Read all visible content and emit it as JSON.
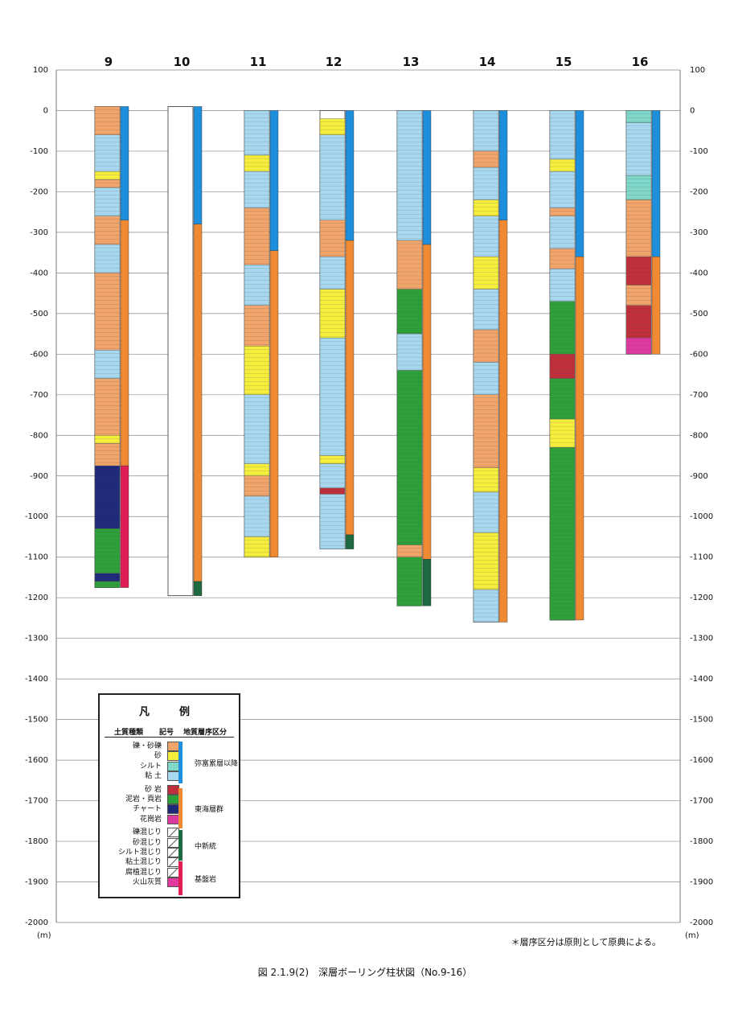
{
  "chart_data": {
    "type": "strip-log",
    "y_axis": {
      "range": [
        100,
        -2000
      ],
      "ticks": [
        100,
        0,
        -100,
        -200,
        -300,
        -400,
        -500,
        -600,
        -700,
        -800,
        -900,
        -1000,
        -1100,
        -1200,
        -1300,
        -1400,
        -1500,
        -1600,
        -1700,
        -1800,
        -1900,
        -2000
      ],
      "unit": "(m)"
    },
    "grid": true,
    "columns": [
      {
        "label": "9",
        "top": 10,
        "bottom": -1175,
        "strata": [
          {
            "name": "弥富累層以降",
            "top": 10,
            "bottom": -270
          },
          {
            "name": "東海層群",
            "top": -270,
            "bottom": -875
          },
          {
            "name": "基盤岩",
            "top": -875,
            "bottom": -1175
          }
        ],
        "lithology": [
          {
            "type": "gravel",
            "top": 10,
            "bottom": -60
          },
          {
            "type": "clay",
            "top": -60,
            "bottom": -150
          },
          {
            "type": "sand",
            "top": -150,
            "bottom": -170
          },
          {
            "type": "gravel",
            "top": -170,
            "bottom": -190
          },
          {
            "type": "clay",
            "top": -190,
            "bottom": -260
          },
          {
            "type": "gravel",
            "top": -260,
            "bottom": -330
          },
          {
            "type": "clay",
            "top": -330,
            "bottom": -400
          },
          {
            "type": "gravel",
            "top": -400,
            "bottom": -590
          },
          {
            "type": "clay",
            "top": -590,
            "bottom": -660
          },
          {
            "type": "gravel",
            "top": -660,
            "bottom": -800
          },
          {
            "type": "sand",
            "top": -800,
            "bottom": -820
          },
          {
            "type": "gravel",
            "top": -820,
            "bottom": -875
          },
          {
            "type": "chert",
            "top": -875,
            "bottom": -1030
          },
          {
            "type": "mudstone",
            "top": -1030,
            "bottom": -1140
          },
          {
            "type": "chert",
            "top": -1140,
            "bottom": -1160
          },
          {
            "type": "mudstone",
            "top": -1160,
            "bottom": -1175
          }
        ]
      },
      {
        "label": "10",
        "top": 10,
        "bottom": -1195,
        "strata": [
          {
            "name": "弥富累層以降",
            "top": 10,
            "bottom": -280
          },
          {
            "name": "東海層群",
            "top": -280,
            "bottom": -1160
          },
          {
            "name": "中新統",
            "top": -1160,
            "bottom": -1195
          }
        ],
        "lithology": []
      },
      {
        "label": "11",
        "top": 0,
        "bottom": -1100,
        "strata": [
          {
            "name": "弥富累層以降",
            "top": 0,
            "bottom": -345
          },
          {
            "name": "東海層群",
            "top": -345,
            "bottom": -1100
          }
        ],
        "lithology": [
          {
            "type": "clay",
            "top": 0,
            "bottom": -110
          },
          {
            "type": "sand",
            "top": -110,
            "bottom": -150
          },
          {
            "type": "clay",
            "top": -150,
            "bottom": -240
          },
          {
            "type": "gravel",
            "top": -240,
            "bottom": -380
          },
          {
            "type": "clay",
            "top": -380,
            "bottom": -480
          },
          {
            "type": "gravel",
            "top": -480,
            "bottom": -580
          },
          {
            "type": "sand",
            "top": -580,
            "bottom": -700
          },
          {
            "type": "clay",
            "top": -700,
            "bottom": -870
          },
          {
            "type": "sand",
            "top": -870,
            "bottom": -900
          },
          {
            "type": "gravel",
            "top": -900,
            "bottom": -950
          },
          {
            "type": "clay",
            "top": -950,
            "bottom": -1050
          },
          {
            "type": "sand",
            "top": -1050,
            "bottom": -1100
          }
        ]
      },
      {
        "label": "12",
        "top": 0,
        "bottom": -1080,
        "strata": [
          {
            "name": "弥富累層以降",
            "top": 0,
            "bottom": -320
          },
          {
            "name": "東海層群",
            "top": -320,
            "bottom": -1045
          },
          {
            "name": "中新統",
            "top": -1045,
            "bottom": -1080
          }
        ],
        "lithology": [
          {
            "type": "sand",
            "top": -20,
            "bottom": -60
          },
          {
            "type": "clay",
            "top": -60,
            "bottom": -270
          },
          {
            "type": "gravel",
            "top": -270,
            "bottom": -360
          },
          {
            "type": "clay",
            "top": -360,
            "bottom": -440
          },
          {
            "type": "sand",
            "top": -440,
            "bottom": -560
          },
          {
            "type": "clay",
            "top": -560,
            "bottom": -850
          },
          {
            "type": "sand",
            "top": -850,
            "bottom": -870
          },
          {
            "type": "clay",
            "top": -870,
            "bottom": -930
          },
          {
            "type": "sandstone",
            "top": -930,
            "bottom": -945
          },
          {
            "type": "clay",
            "top": -945,
            "bottom": -1080
          }
        ]
      },
      {
        "label": "13",
        "top": 0,
        "bottom": -1220,
        "strata": [
          {
            "name": "弥富累層以降",
            "top": 0,
            "bottom": -330
          },
          {
            "name": "東海層群",
            "top": -330,
            "bottom": -1105
          },
          {
            "name": "中新統",
            "top": -1105,
            "bottom": -1220
          }
        ],
        "lithology": [
          {
            "type": "clay",
            "top": 0,
            "bottom": -320
          },
          {
            "type": "gravel",
            "top": -320,
            "bottom": -440
          },
          {
            "type": "mudstone",
            "top": -440,
            "bottom": -550
          },
          {
            "type": "clay",
            "top": -550,
            "bottom": -640
          },
          {
            "type": "mudstone",
            "top": -640,
            "bottom": -1070
          },
          {
            "type": "gravel",
            "top": -1070,
            "bottom": -1100
          },
          {
            "type": "mudstone",
            "top": -1100,
            "bottom": -1220
          }
        ]
      },
      {
        "label": "14",
        "top": 0,
        "bottom": -1260,
        "strata": [
          {
            "name": "弥富累層以降",
            "top": 0,
            "bottom": -270
          },
          {
            "name": "東海層群",
            "top": -270,
            "bottom": -1260
          }
        ],
        "lithology": [
          {
            "type": "clay",
            "top": 0,
            "bottom": -100
          },
          {
            "type": "gravel",
            "top": -100,
            "bottom": -140
          },
          {
            "type": "clay",
            "top": -140,
            "bottom": -220
          },
          {
            "type": "sand",
            "top": -220,
            "bottom": -260
          },
          {
            "type": "clay",
            "top": -260,
            "bottom": -360
          },
          {
            "type": "sand",
            "top": -360,
            "bottom": -440
          },
          {
            "type": "clay",
            "top": -440,
            "bottom": -540
          },
          {
            "type": "gravel",
            "top": -540,
            "bottom": -620
          },
          {
            "type": "clay",
            "top": -620,
            "bottom": -700
          },
          {
            "type": "gravel",
            "top": -700,
            "bottom": -880
          },
          {
            "type": "sand",
            "top": -880,
            "bottom": -940
          },
          {
            "type": "clay",
            "top": -940,
            "bottom": -1040
          },
          {
            "type": "sand",
            "top": -1040,
            "bottom": -1180
          },
          {
            "type": "clay",
            "top": -1180,
            "bottom": -1260
          }
        ]
      },
      {
        "label": "15",
        "top": 0,
        "bottom": -1255,
        "strata": [
          {
            "name": "弥富累層以降",
            "top": 0,
            "bottom": -360
          },
          {
            "name": "東海層群",
            "top": -360,
            "bottom": -1255
          }
        ],
        "lithology": [
          {
            "type": "clay",
            "top": 0,
            "bottom": -120
          },
          {
            "type": "sand",
            "top": -120,
            "bottom": -150
          },
          {
            "type": "clay",
            "top": -150,
            "bottom": -240
          },
          {
            "type": "gravel",
            "top": -240,
            "bottom": -260
          },
          {
            "type": "clay",
            "top": -260,
            "bottom": -340
          },
          {
            "type": "gravel",
            "top": -340,
            "bottom": -390
          },
          {
            "type": "clay",
            "top": -390,
            "bottom": -470
          },
          {
            "type": "mudstone",
            "top": -470,
            "bottom": -600
          },
          {
            "type": "sandstone",
            "top": -600,
            "bottom": -660
          },
          {
            "type": "mudstone",
            "top": -660,
            "bottom": -760
          },
          {
            "type": "sand",
            "top": -760,
            "bottom": -830
          },
          {
            "type": "mudstone",
            "top": -830,
            "bottom": -1255
          }
        ]
      },
      {
        "label": "16",
        "top": 0,
        "bottom": -600,
        "strata": [
          {
            "name": "弥富累層以降",
            "top": 0,
            "bottom": -360
          },
          {
            "name": "東海層群",
            "top": -360,
            "bottom": -600
          }
        ],
        "lithology": [
          {
            "type": "silt",
            "top": 0,
            "bottom": -30
          },
          {
            "type": "clay",
            "top": -30,
            "bottom": -160
          },
          {
            "type": "silt",
            "top": -160,
            "bottom": -220
          },
          {
            "type": "gravel",
            "top": -220,
            "bottom": -360
          },
          {
            "type": "sandstone",
            "top": -360,
            "bottom": -430
          },
          {
            "type": "gravel",
            "top": -430,
            "bottom": -480
          },
          {
            "type": "sandstone",
            "top": -480,
            "bottom": -560
          },
          {
            "type": "volcanic",
            "top": -560,
            "bottom": -600
          }
        ]
      }
    ]
  },
  "colors": {
    "gravel": "#f2a56a",
    "sand": "#f5ee3c",
    "silt": "#7fd8c9",
    "clay": "#a8d8f0",
    "sandstone": "#c0303a",
    "mudstone": "#2ea03a",
    "chert": "#1f2a7a",
    "granite": "#d83aa0",
    "volcanic": "#e03aa0",
    "strat_1": "#1e8fdc",
    "strat_2": "#f08a32",
    "strat_3": "#1e6a40",
    "strat_4": "#e01e55"
  },
  "legend": {
    "title": "凡　例",
    "col_soil": "土質種類",
    "col_symbol": "記号",
    "col_strat": "地質層序区分",
    "soil_items": [
      {
        "label": "礫・砂礫",
        "key": "gravel"
      },
      {
        "label": "砂",
        "key": "sand"
      },
      {
        "label": "シルト",
        "key": "silt"
      },
      {
        "label": "粘 土",
        "key": "clay"
      },
      {
        "label": "砂 岩",
        "key": "sandstone"
      },
      {
        "label": "泥岩・頁岩",
        "key": "mudstone"
      },
      {
        "label": "チャート",
        "key": "chert"
      },
      {
        "label": "花崗岩",
        "key": "granite"
      },
      {
        "label": "礫混じり",
        "key": "mix"
      },
      {
        "label": "砂混じり",
        "key": "mix"
      },
      {
        "label": "シルト混じり",
        "key": "mix"
      },
      {
        "label": "粘土混じり",
        "key": "mix"
      },
      {
        "label": "腐植混じり",
        "key": "mix"
      },
      {
        "label": "火山灰質",
        "key": "volcanic"
      }
    ],
    "strat_items": [
      {
        "label": "弥富累層以降",
        "key": "strat_1"
      },
      {
        "label": "東海層群",
        "key": "strat_2"
      },
      {
        "label": "中新統",
        "key": "strat_3"
      },
      {
        "label": "基盤岩",
        "key": "strat_4"
      }
    ]
  },
  "footnote": "＊層序区分は原則として原典による。",
  "caption": "図 2.1.9(2)　深層ボーリング柱状図（No.9-16）"
}
